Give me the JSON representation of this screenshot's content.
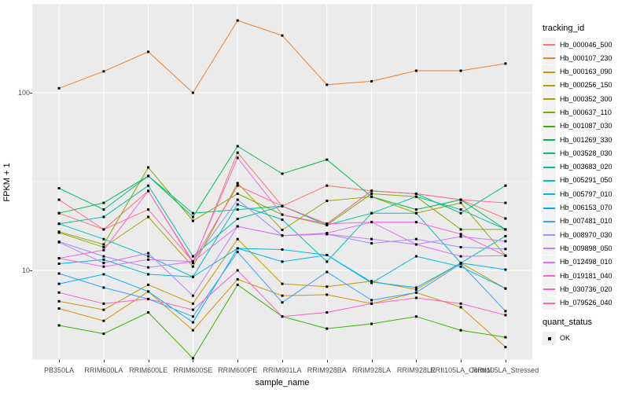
{
  "figure": {
    "background": "#ffffff",
    "panel_background": "#EBEBEB",
    "gridline_color": "#FFFFFF",
    "point_color": "#000000",
    "tick_text_color": "#4D4D4D"
  },
  "axes": {
    "y": {
      "title": "FPKM + 1",
      "ticks": [
        "100",
        "10"
      ],
      "scale": "log10"
    },
    "x": {
      "title": "sample_name"
    }
  },
  "legend": {
    "tracking": {
      "title": "tracking_id"
    },
    "quant": {
      "title": "quant_status",
      "ok_label": "OK"
    }
  },
  "chart_data": {
    "type": "line",
    "title": "",
    "xlabel": "sample_name",
    "ylabel": "FPKM + 1",
    "yscale": "log10",
    "ylim": [
      3.1,
      316
    ],
    "yticks": [
      10,
      100
    ],
    "yminor": [
      3.162,
      31.62,
      316.2
    ],
    "grid": "on",
    "legend_position": "right",
    "point_marker": "filled-square",
    "categories": [
      "PB350LA",
      "RRIM600LA",
      "RRIM600LE",
      "RRIM600SE",
      "RRIM600PE",
      "RRIM901LA",
      "RRIM928BA",
      "RRIM928LA",
      "RRIM928LE",
      "RRII105LA_Control",
      "RRII105LA_Stressed"
    ],
    "series": [
      {
        "name": "Hb_000046_500",
        "color": "#F8766D",
        "values": [
          21,
          17,
          28,
          11,
          46,
          23,
          30,
          28,
          27,
          25,
          19.6
        ]
      },
      {
        "name": "Hb_000107_230",
        "color": "#EA8331",
        "values": [
          106,
          132,
          170,
          100,
          255,
          210,
          111,
          116,
          133,
          133,
          146
        ]
      },
      {
        "name": "Hb_000163_090",
        "color": "#D89000",
        "values": [
          6.1,
          5.2,
          7.6,
          4.6,
          8.9,
          7.2,
          7.3,
          6.5,
          7.5,
          6.2,
          3.7
        ]
      },
      {
        "name": "Hb_000256_150",
        "color": "#C09B00",
        "values": [
          6.7,
          6.0,
          8.3,
          6.5,
          15,
          8.4,
          8.1,
          8.7,
          7.8,
          11,
          7.9
        ]
      },
      {
        "name": "Hb_000352_300",
        "color": "#A3A500",
        "values": [
          16.3,
          13.5,
          20,
          10.5,
          31,
          16.9,
          24.6,
          26,
          21,
          24,
          12.1
        ]
      },
      {
        "name": "Hb_000637_110",
        "color": "#7CAE00",
        "values": [
          16.5,
          14,
          38,
          19,
          27,
          20.6,
          18,
          27,
          26,
          17,
          17
        ]
      },
      {
        "name": "Hb_001087_030",
        "color": "#39B600",
        "values": [
          4.9,
          4.4,
          5.8,
          3.2,
          8.3,
          5.5,
          4.7,
          5.0,
          5.5,
          4.6,
          4.2
        ]
      },
      {
        "name": "Hb_001269_330",
        "color": "#00BB4E",
        "values": [
          21,
          24,
          34,
          20,
          50,
          35,
          42,
          26,
          22,
          25,
          17
        ]
      },
      {
        "name": "Hb_003528_030",
        "color": "#00BF7D",
        "values": [
          29,
          22,
          34,
          21,
          22,
          23,
          18.3,
          28,
          27,
          21,
          30
        ]
      },
      {
        "name": "Hb_003683_020",
        "color": "#00C1A3",
        "values": [
          18.3,
          20,
          30,
          12,
          19.5,
          23,
          18,
          21,
          26,
          22,
          17
        ]
      },
      {
        "name": "Hb_005291_050",
        "color": "#00BFC4",
        "values": [
          18.3,
          15,
          12,
          9.2,
          23.5,
          19.3,
          11.2,
          21,
          21,
          11,
          15.6
        ]
      },
      {
        "name": "Hb_005797_010",
        "color": "#00BAE0",
        "values": [
          10.9,
          11.5,
          9.5,
          9.2,
          13.3,
          13.1,
          12.2,
          8.5,
          12,
          10.5,
          7.9
        ]
      },
      {
        "name": "Hb_006153_070",
        "color": "#00B0F6",
        "values": [
          8.4,
          9.5,
          7.6,
          5.1,
          13.3,
          11.2,
          12.2,
          8.6,
          8,
          11,
          10.1
        ]
      },
      {
        "name": "Hb_007481_010",
        "color": "#35A2FF",
        "values": [
          9.6,
          8.0,
          6.9,
          5.5,
          12.7,
          6.6,
          9.8,
          6.8,
          7.5,
          10.9,
          5.9
        ]
      },
      {
        "name": "Hb_008970_030",
        "color": "#9590FF",
        "values": [
          14.5,
          12,
          10.4,
          11.2,
          25,
          15.7,
          16,
          14.2,
          15,
          13.5,
          13.2
        ]
      },
      {
        "name": "Hb_009898_050",
        "color": "#C77CFF",
        "values": [
          14.4,
          11,
          12.5,
          7.2,
          17.7,
          15.7,
          16,
          15,
          14,
          15.5,
          14.6
        ]
      },
      {
        "name": "Hb_012498_010",
        "color": "#E36EF6",
        "values": [
          11.7,
          10.5,
          11.5,
          11.2,
          17.7,
          15.7,
          16.2,
          18.7,
          14,
          12,
          12.1
        ]
      },
      {
        "name": "Hb_019181_040",
        "color": "#FA62DB",
        "values": [
          11.7,
          13,
          28,
          11.2,
          43,
          20.6,
          18.3,
          18.7,
          18.7,
          16,
          12.1
        ]
      },
      {
        "name": "Hb_030736_020",
        "color": "#FF61C7",
        "values": [
          7.5,
          6.5,
          6.9,
          6.0,
          10,
          5.5,
          5.8,
          6.5,
          7,
          6.5,
          5.6
        ]
      },
      {
        "name": "Hb_079526_040",
        "color": "#FF6C90",
        "values": [
          25,
          17,
          22,
          11.2,
          30,
          23,
          18.3,
          28,
          27,
          25,
          24
        ]
      }
    ]
  }
}
